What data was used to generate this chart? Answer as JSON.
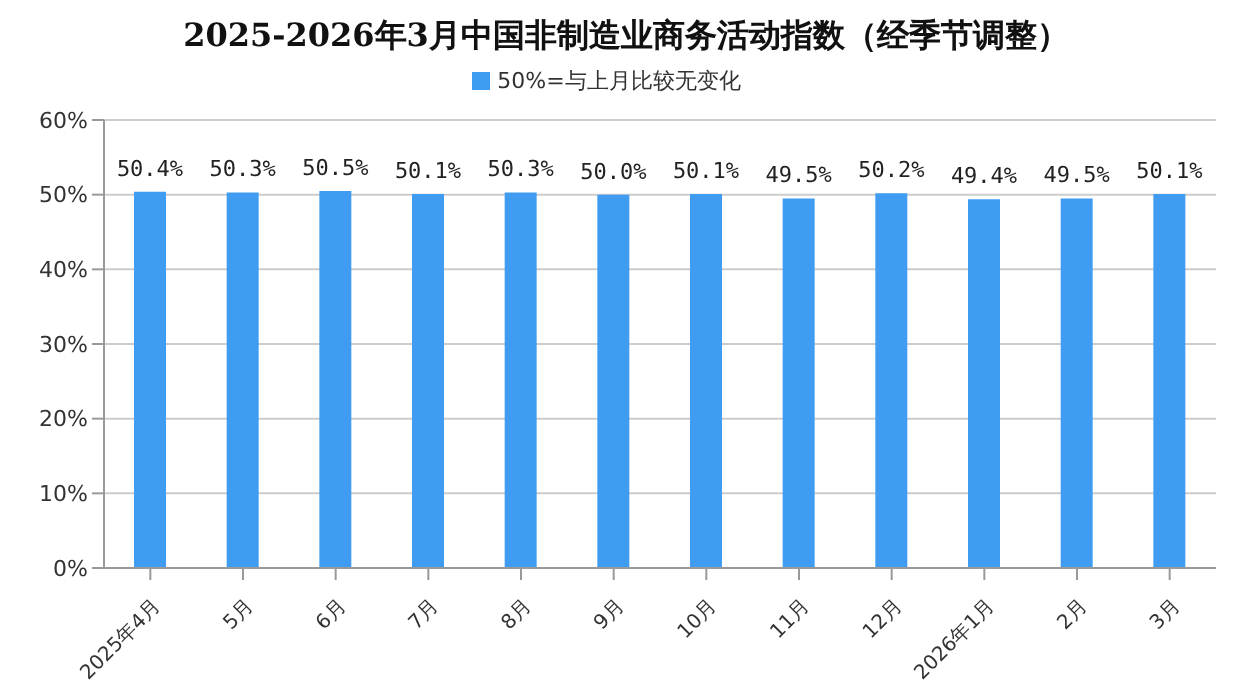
{
  "chart_data": {
    "type": "bar",
    "title": "2025-2026年3月中国非制造业商务活动指数（经季节调整）",
    "categories": [
      "2025年4月",
      "5月",
      "6月",
      "7月",
      "8月",
      "9月",
      "10月",
      "11月",
      "12月",
      "2026年1月",
      "2月",
      "3月"
    ],
    "series": [
      {
        "name": "50%=与上月比较无变化",
        "color": "#3f9cf0",
        "values": [
          50.4,
          50.3,
          50.5,
          50.1,
          50.3,
          50.0,
          50.1,
          49.5,
          50.2,
          49.4,
          49.5,
          50.1
        ],
        "value_labels": [
          "50.4%",
          "50.3%",
          "50.5%",
          "50.1%",
          "50.3%",
          "50.0%",
          "50.1%",
          "49.5%",
          "50.2%",
          "49.4%",
          "49.5%",
          "50.1%"
        ]
      }
    ],
    "ylim": [
      0,
      60
    ],
    "yticks": [
      {
        "value": 0,
        "label": "0%"
      },
      {
        "value": 10,
        "label": "10%"
      },
      {
        "value": 20,
        "label": "20%"
      },
      {
        "value": 30,
        "label": "30%"
      },
      {
        "value": 40,
        "label": "40%"
      },
      {
        "value": 50,
        "label": "50%"
      },
      {
        "value": 60,
        "label": "60%"
      }
    ],
    "grid": "y",
    "legend": "top"
  }
}
